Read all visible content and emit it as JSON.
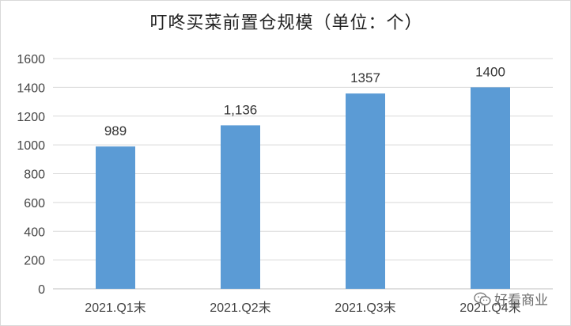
{
  "chart_data": {
    "type": "bar",
    "title": "叮咚买菜前置仓规模（单位：个）",
    "categories": [
      "2021.Q1末",
      "2021.Q2末",
      "2021.Q3末",
      "2021.Q4末"
    ],
    "values": [
      989,
      1136,
      1357,
      1400
    ],
    "data_labels": [
      "989",
      "1,136",
      "1357",
      "1400"
    ],
    "ylim": [
      0,
      1600
    ],
    "yticks": [
      0,
      200,
      400,
      600,
      800,
      1000,
      1200,
      1400,
      1600
    ],
    "grid": true,
    "bar_color": "#5b9bd5",
    "xlabel": "",
    "ylabel": ""
  },
  "watermark": {
    "text": "好看商业"
  }
}
